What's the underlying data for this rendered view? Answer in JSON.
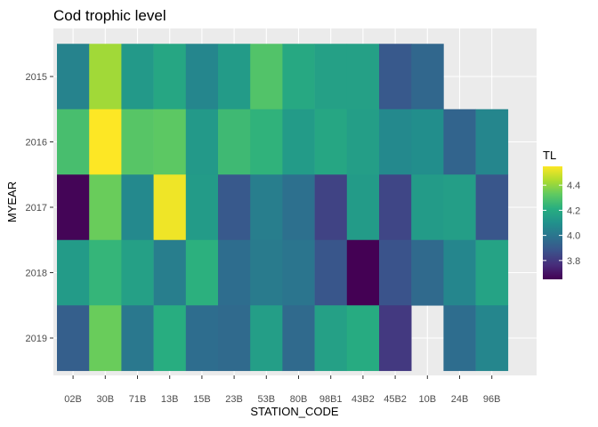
{
  "chart_data": {
    "type": "heatmap",
    "title": "Cod trophic level",
    "xlabel": "STATION_CODE",
    "ylabel": "MYEAR",
    "x_categories": [
      "02B",
      "30B",
      "71B",
      "13B",
      "15B",
      "23B",
      "53B",
      "80B",
      "98B1",
      "43B2",
      "45B2",
      "10B",
      "24B",
      "96B"
    ],
    "y_categories": [
      "2015",
      "2016",
      "2017",
      "2018",
      "2019"
    ],
    "legend_title": "TL",
    "legend_ticks": [
      3.8,
      4.0,
      4.2,
      4.4
    ],
    "value_range": [
      3.65,
      4.55
    ],
    "colormap": "viridis",
    "panel_background": "#ebebeb",
    "grid": true,
    "legend_position": "right",
    "values": [
      [
        4.05,
        4.42,
        4.13,
        4.18,
        4.06,
        4.14,
        4.3,
        4.19,
        4.16,
        4.16,
        3.9,
        3.95,
        null,
        null
      ],
      [
        4.28,
        4.55,
        4.31,
        4.32,
        4.13,
        4.26,
        4.23,
        4.14,
        4.18,
        4.15,
        4.07,
        4.09,
        3.94,
        4.06
      ],
      [
        3.66,
        4.34,
        4.07,
        4.53,
        4.14,
        3.9,
        4.03,
        3.98,
        3.83,
        4.14,
        3.84,
        4.14,
        4.15,
        3.89
      ],
      [
        4.14,
        4.24,
        4.16,
        4.03,
        4.22,
        3.97,
        4.02,
        4.0,
        3.89,
        3.64,
        3.88,
        3.96,
        4.06,
        4.17
      ],
      [
        3.92,
        4.34,
        4.01,
        4.21,
        3.97,
        3.96,
        4.15,
        3.96,
        4.16,
        4.2,
        3.8,
        null,
        3.97,
        4.06
      ]
    ]
  }
}
